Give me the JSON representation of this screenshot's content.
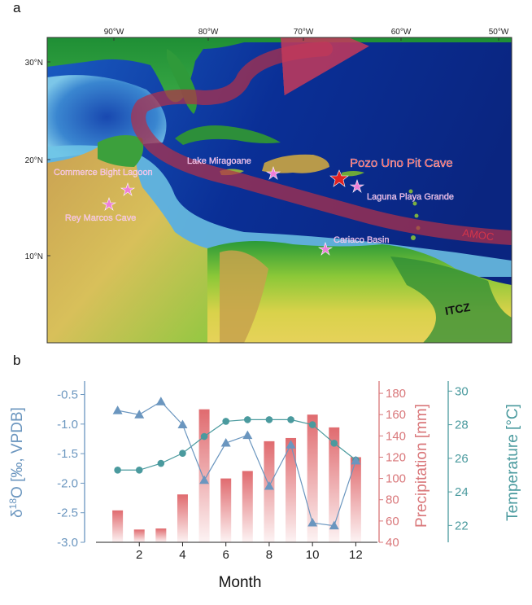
{
  "panels": {
    "a": "a",
    "b": "b"
  },
  "map": {
    "lon_ticks": [
      "90°W",
      "80°W",
      "70°W",
      "60°W",
      "50°W"
    ],
    "lat_ticks": [
      "30°N",
      "20°N",
      "10°N"
    ],
    "sites": {
      "pozo": "Pozo Uno Pit Cave",
      "commerce": "Commerce Bight Lagoon",
      "miragoane": "Lake Miragoane",
      "laguna": "Laguna Playa Grande",
      "rey": "Rey Marcos Cave",
      "cariaco": "Cariaco Basin"
    },
    "amoc": "AMOC",
    "itcz": "ITCZ",
    "colors": {
      "deep_ocean": "#0a2f96",
      "shelf": "#6ec6e6",
      "land_low": "#2f9a3a",
      "land_high": "#c9a24a",
      "arrow": "#b0304a",
      "site_star": "#ee7fd8",
      "main_star": "#e02222"
    }
  },
  "chart_data": {
    "type": "line",
    "xlabel": "Month",
    "x": [
      1,
      2,
      3,
      4,
      5,
      6,
      7,
      8,
      9,
      10,
      11,
      12
    ],
    "xticks": [
      2,
      4,
      6,
      8,
      10,
      12
    ],
    "xlim": [
      0,
      13
    ],
    "axes": {
      "d18o": {
        "label": "δ18O [‰, VPDB]",
        "label_main": "δ",
        "label_sup": "18",
        "label_rest": "O [‰, VPDB]",
        "ticks": [
          "-0.5",
          "-1.0",
          "-1.5",
          "-2.0",
          "-2.5",
          "-3.0"
        ],
        "tick_values": [
          -0.5,
          -1.0,
          -1.5,
          -2.0,
          -2.5,
          -3.0
        ],
        "ylim": [
          -3.0,
          -0.3
        ],
        "color": "#6b96bf"
      },
      "precip": {
        "label": "Precipitation [mm]",
        "ticks": [
          "40",
          "60",
          "80",
          "100",
          "120",
          "140",
          "160",
          "180"
        ],
        "tick_values": [
          40,
          60,
          80,
          100,
          120,
          140,
          160,
          180
        ],
        "ylim": [
          40,
          190
        ],
        "color": "#d9777a"
      },
      "temp": {
        "label": "Temperature [°C]",
        "ticks": [
          "22",
          "24",
          "26",
          "28",
          "30"
        ],
        "tick_values": [
          22,
          24,
          26,
          28,
          30
        ],
        "ylim": [
          21,
          30.5
        ],
        "color": "#4a9a9e"
      }
    },
    "series": [
      {
        "key": "precip",
        "kind": "bar",
        "values": [
          70,
          52,
          53,
          85,
          165,
          100,
          107,
          135,
          138,
          160,
          148,
          120
        ]
      },
      {
        "key": "d18o",
        "kind": "line-triangle",
        "values": [
          -0.77,
          -0.84,
          -0.62,
          -1.01,
          -1.95,
          -1.32,
          -1.19,
          -2.05,
          -1.35,
          -2.67,
          -2.72,
          -1.62
        ]
      },
      {
        "key": "temp",
        "kind": "line-circle",
        "values": [
          25.3,
          25.3,
          25.7,
          26.3,
          27.3,
          28.2,
          28.3,
          28.3,
          28.3,
          28.0,
          26.9,
          25.9
        ]
      }
    ]
  }
}
